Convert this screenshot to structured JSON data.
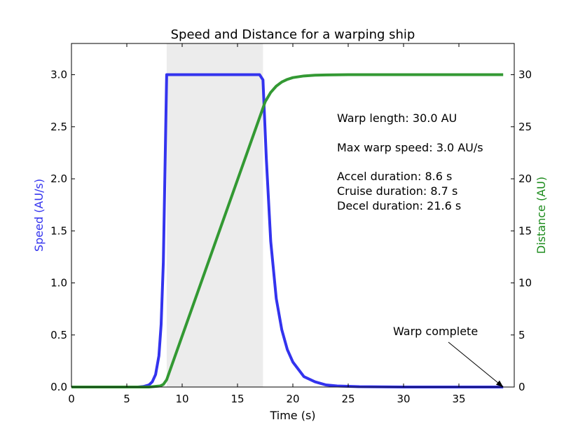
{
  "chart_data": {
    "type": "line",
    "title": "Speed and Distance for a warping ship",
    "xlabel": "Time (s)",
    "ylabel_left": "Speed (AU/s)",
    "ylabel_right": "Distance (AU)",
    "xlim": [
      0,
      40
    ],
    "ylim_left": [
      0,
      3.3
    ],
    "ylim_right": [
      0,
      33
    ],
    "x_ticks": [
      "0",
      "5",
      "10",
      "15",
      "20",
      "25",
      "30",
      "35"
    ],
    "y_left_ticks": [
      "0.0",
      "0.5",
      "1.0",
      "1.5",
      "2.0",
      "2.5",
      "3.0"
    ],
    "y_right_ticks": [
      "0",
      "5",
      "10",
      "15",
      "20",
      "25",
      "30"
    ],
    "grid": false,
    "cruise_span": [
      8.6,
      17.3
    ],
    "series": [
      {
        "axis": "left",
        "color": "#3333ee",
        "points": [
          [
            0,
            0
          ],
          [
            6,
            0
          ],
          [
            6.5,
            0.005
          ],
          [
            7,
            0.02
          ],
          [
            7.3,
            0.05
          ],
          [
            7.6,
            0.12
          ],
          [
            7.9,
            0.3
          ],
          [
            8.1,
            0.6
          ],
          [
            8.3,
            1.2
          ],
          [
            8.45,
            2.1
          ],
          [
            8.6,
            3.0
          ],
          [
            17.0,
            3.0
          ],
          [
            17.3,
            2.95
          ],
          [
            17.6,
            2.2
          ],
          [
            18.0,
            1.4
          ],
          [
            18.5,
            0.85
          ],
          [
            19,
            0.55
          ],
          [
            19.5,
            0.36
          ],
          [
            20,
            0.24
          ],
          [
            21,
            0.1
          ],
          [
            22,
            0.05
          ],
          [
            23,
            0.02
          ],
          [
            24,
            0.01
          ],
          [
            26,
            0.003
          ],
          [
            30,
            0
          ],
          [
            39,
            0
          ]
        ]
      },
      {
        "axis": "right",
        "color": "#339933",
        "points": [
          [
            0,
            0
          ],
          [
            7,
            0
          ],
          [
            8,
            0.1
          ],
          [
            8.3,
            0.25
          ],
          [
            8.6,
            0.7
          ],
          [
            17.3,
            26.8
          ],
          [
            17.5,
            27.4
          ],
          [
            18,
            28.3
          ],
          [
            18.5,
            28.9
          ],
          [
            19,
            29.3
          ],
          [
            19.5,
            29.55
          ],
          [
            20,
            29.72
          ],
          [
            21,
            29.88
          ],
          [
            22,
            29.95
          ],
          [
            23,
            29.98
          ],
          [
            25,
            30
          ],
          [
            39,
            30
          ]
        ]
      }
    ],
    "annotations": {
      "info_lines": [
        "Warp length: 30.0 AU",
        "Max warp speed: 3.0 AU/s",
        "Accel duration: 8.6 s",
        "Cruise duration: 8.7 s",
        "Decel duration: 21.6 s"
      ],
      "arrow_label": "Warp complete",
      "arrow_target": [
        39,
        0
      ]
    }
  }
}
